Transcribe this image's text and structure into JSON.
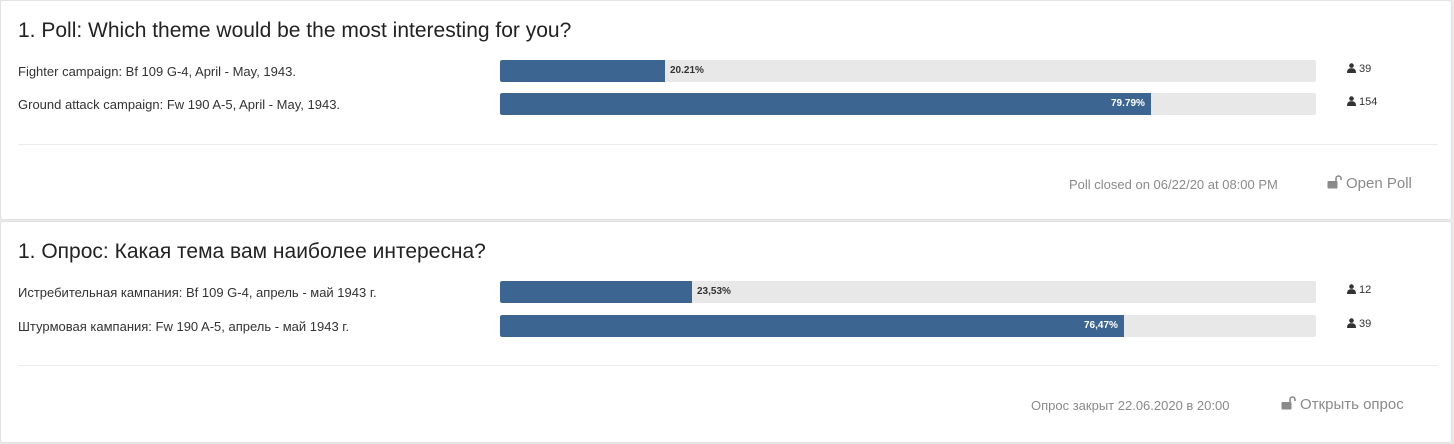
{
  "polls": [
    {
      "title": "1. Poll: Which theme would be the most interesting for you?",
      "choices": [
        {
          "label": "Fighter campaign: Bf 109 G-4, April - May, 1943.",
          "percent": 20.21,
          "percent_label": "20.21%",
          "votes": "39"
        },
        {
          "label": "Ground attack campaign: Fw 190 A-5, April - May, 1943.",
          "percent": 79.79,
          "percent_label": "79.79%",
          "votes": "154"
        }
      ],
      "closed_text": "Poll closed on 06/22/20 at 08:00 PM",
      "open_label": "Open Poll",
      "vote_icon": "user-icon",
      "open_icon": "unlock-icon"
    },
    {
      "title": "1. Опрос: Какая тема вам наиболее интересна?",
      "choices": [
        {
          "label": "Истребительная кампания: Bf 109 G-4, апрель - май 1943 г.",
          "percent": 23.53,
          "percent_label": "23,53%",
          "votes": "12"
        },
        {
          "label": "Штурмовая кампания: Fw 190 A-5, апрель - май 1943 г.",
          "percent": 76.47,
          "percent_label": "76,47%",
          "votes": "39"
        }
      ],
      "closed_text": "Опрос закрыт 22.06.2020 в 20:00",
      "open_label": "Открыть опрос",
      "vote_icon": "user-icon",
      "open_icon": "unlock-icon"
    }
  ],
  "colors": {
    "bar_fill": "#3d6591",
    "bar_track": "#e8e8e8",
    "muted_text": "#8a8a8a"
  }
}
